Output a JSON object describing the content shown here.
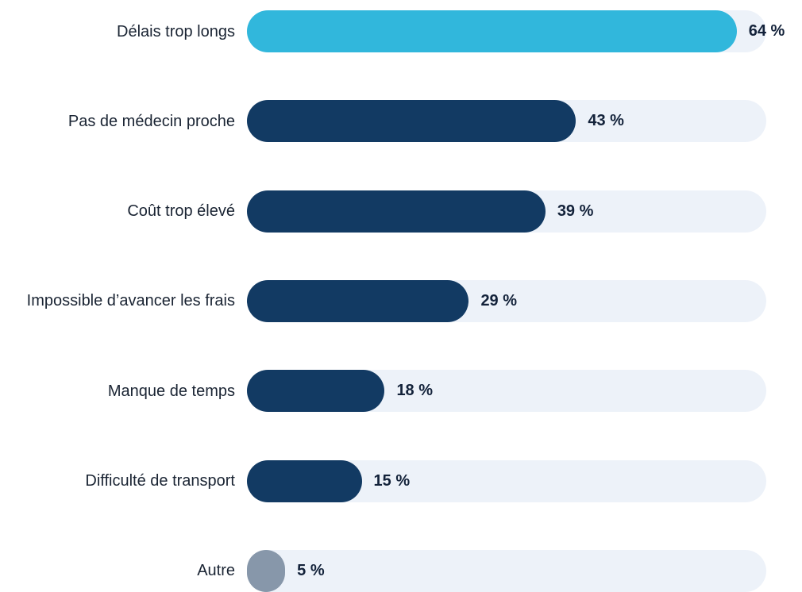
{
  "chart_data": {
    "type": "bar",
    "orientation": "horizontal",
    "categories": [
      "Délais trop longs",
      "Pas de médecin proche",
      "Coût trop élevé",
      "Impossible d’avancer les frais",
      "Manque de temps",
      "Difficulté de transport",
      "Autre"
    ],
    "values": [
      64,
      43,
      39,
      29,
      18,
      15,
      5
    ],
    "value_labels": [
      "64 %",
      "43 %",
      "39 %",
      "29 %",
      "18 %",
      "15 %",
      "5 %"
    ],
    "colors": [
      "#31b7dc",
      "#123a63",
      "#123a63",
      "#123a63",
      "#123a63",
      "#123a63",
      "#8797aa"
    ],
    "track_color": "#edf2f9"
  }
}
